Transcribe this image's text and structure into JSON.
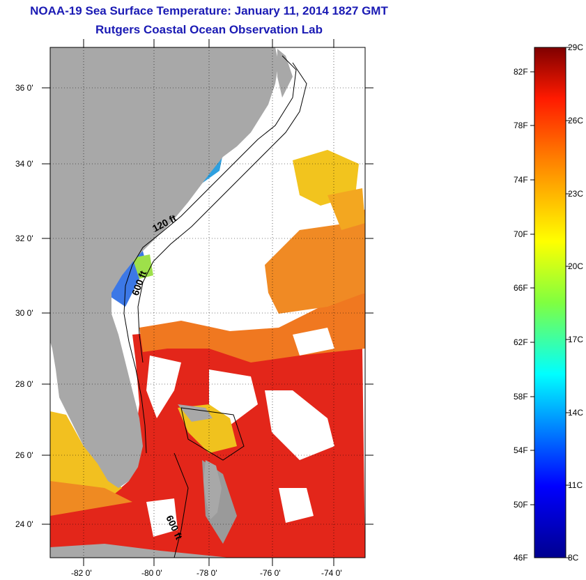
{
  "title": "NOAA-19 Sea Surface Temperature:  January 11, 2014 1827 GMT",
  "subtitle": "Rutgers Coastal Ocean Observation Lab",
  "axes": {
    "lat_labels": [
      "36 0'",
      "34 0'",
      "32 0'",
      "30 0'",
      "28 0'",
      "26 0'",
      "24 0'"
    ],
    "lon_labels": [
      "-82 0'",
      "-80 0'",
      "-78 0'",
      "-76 0'",
      "-74 0'"
    ]
  },
  "contours": {
    "label_120": "120 ft",
    "label_600_north": "600 ft",
    "label_600_south": "600 ft"
  },
  "colorbar": {
    "f_labels": [
      "82F",
      "78F",
      "74F",
      "70F",
      "66F",
      "62F",
      "58F",
      "54F",
      "50F",
      "46F"
    ],
    "c_labels": [
      "29C",
      "26C",
      "23C",
      "20C",
      "17C",
      "14C",
      "11C",
      "8C"
    ]
  },
  "colors": {
    "land": "#a8a8a8",
    "cloud": "#ffffff",
    "title": "#1a1ab4",
    "warm": "#e22a12",
    "orange": "#f07a1e",
    "yellow": "#f4d21e",
    "cold": "#1e4ee0"
  }
}
